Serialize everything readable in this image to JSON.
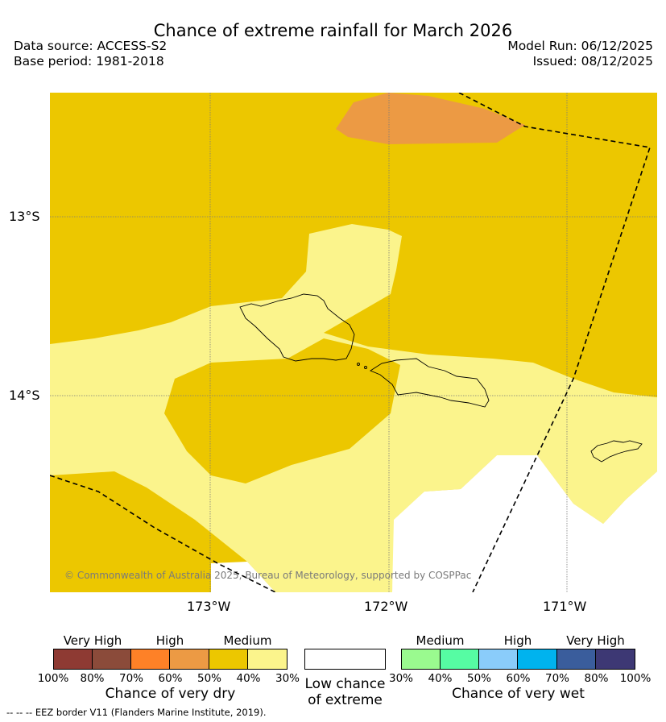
{
  "title": "Chance of extreme rainfall for March 2026",
  "meta": {
    "data_source": "Data source: ACCESS-S2",
    "base_period": "Base period: 1981-2018",
    "model_run": "Model Run: 06/12/2025",
    "issued": "Issued: 08/12/2025"
  },
  "map": {
    "lat_labels": [
      "13°S",
      "14°S"
    ],
    "lon_labels": [
      "173°W",
      "172°W",
      "171°W"
    ],
    "copyright": "© Commonwealth of Australia 2025, Bureau of Meteorology, supported by COSPPac",
    "fill_colors": {
      "dry_medium_40_50": "#ecc700",
      "dry_high_60_70": "#ec9a44",
      "dry_low_30_40": "#fbf48c",
      "no_signal": "#ffffff"
    },
    "eez_line_style": "dashed"
  },
  "legend": {
    "dry": {
      "categories": [
        "Very High",
        "High",
        "Medium"
      ],
      "colors": [
        "#8e3a33",
        "#8b4b3a",
        "#fe8127",
        "#ec9a44",
        "#ecc700",
        "#fbf48c"
      ],
      "ticks": [
        "100%",
        "80%",
        "70%",
        "60%",
        "50%",
        "40%",
        "30%"
      ],
      "title": "Chance of very dry"
    },
    "low": {
      "title_line1": "Low chance",
      "title_line2": "of extreme",
      "color": "#ffffff"
    },
    "wet": {
      "categories": [
        "Medium",
        "High",
        "Very High"
      ],
      "colors": [
        "#9afa8f",
        "#56fca3",
        "#8accfa",
        "#00b3ee",
        "#3a5d9c",
        "#3d3874"
      ],
      "ticks": [
        "30%",
        "40%",
        "50%",
        "60%",
        "70%",
        "80%",
        "100%"
      ],
      "title": "Chance of very wet"
    },
    "eez_note": "--  --  -- EEZ border V11 (Flanders Marine Institute, 2019)."
  }
}
